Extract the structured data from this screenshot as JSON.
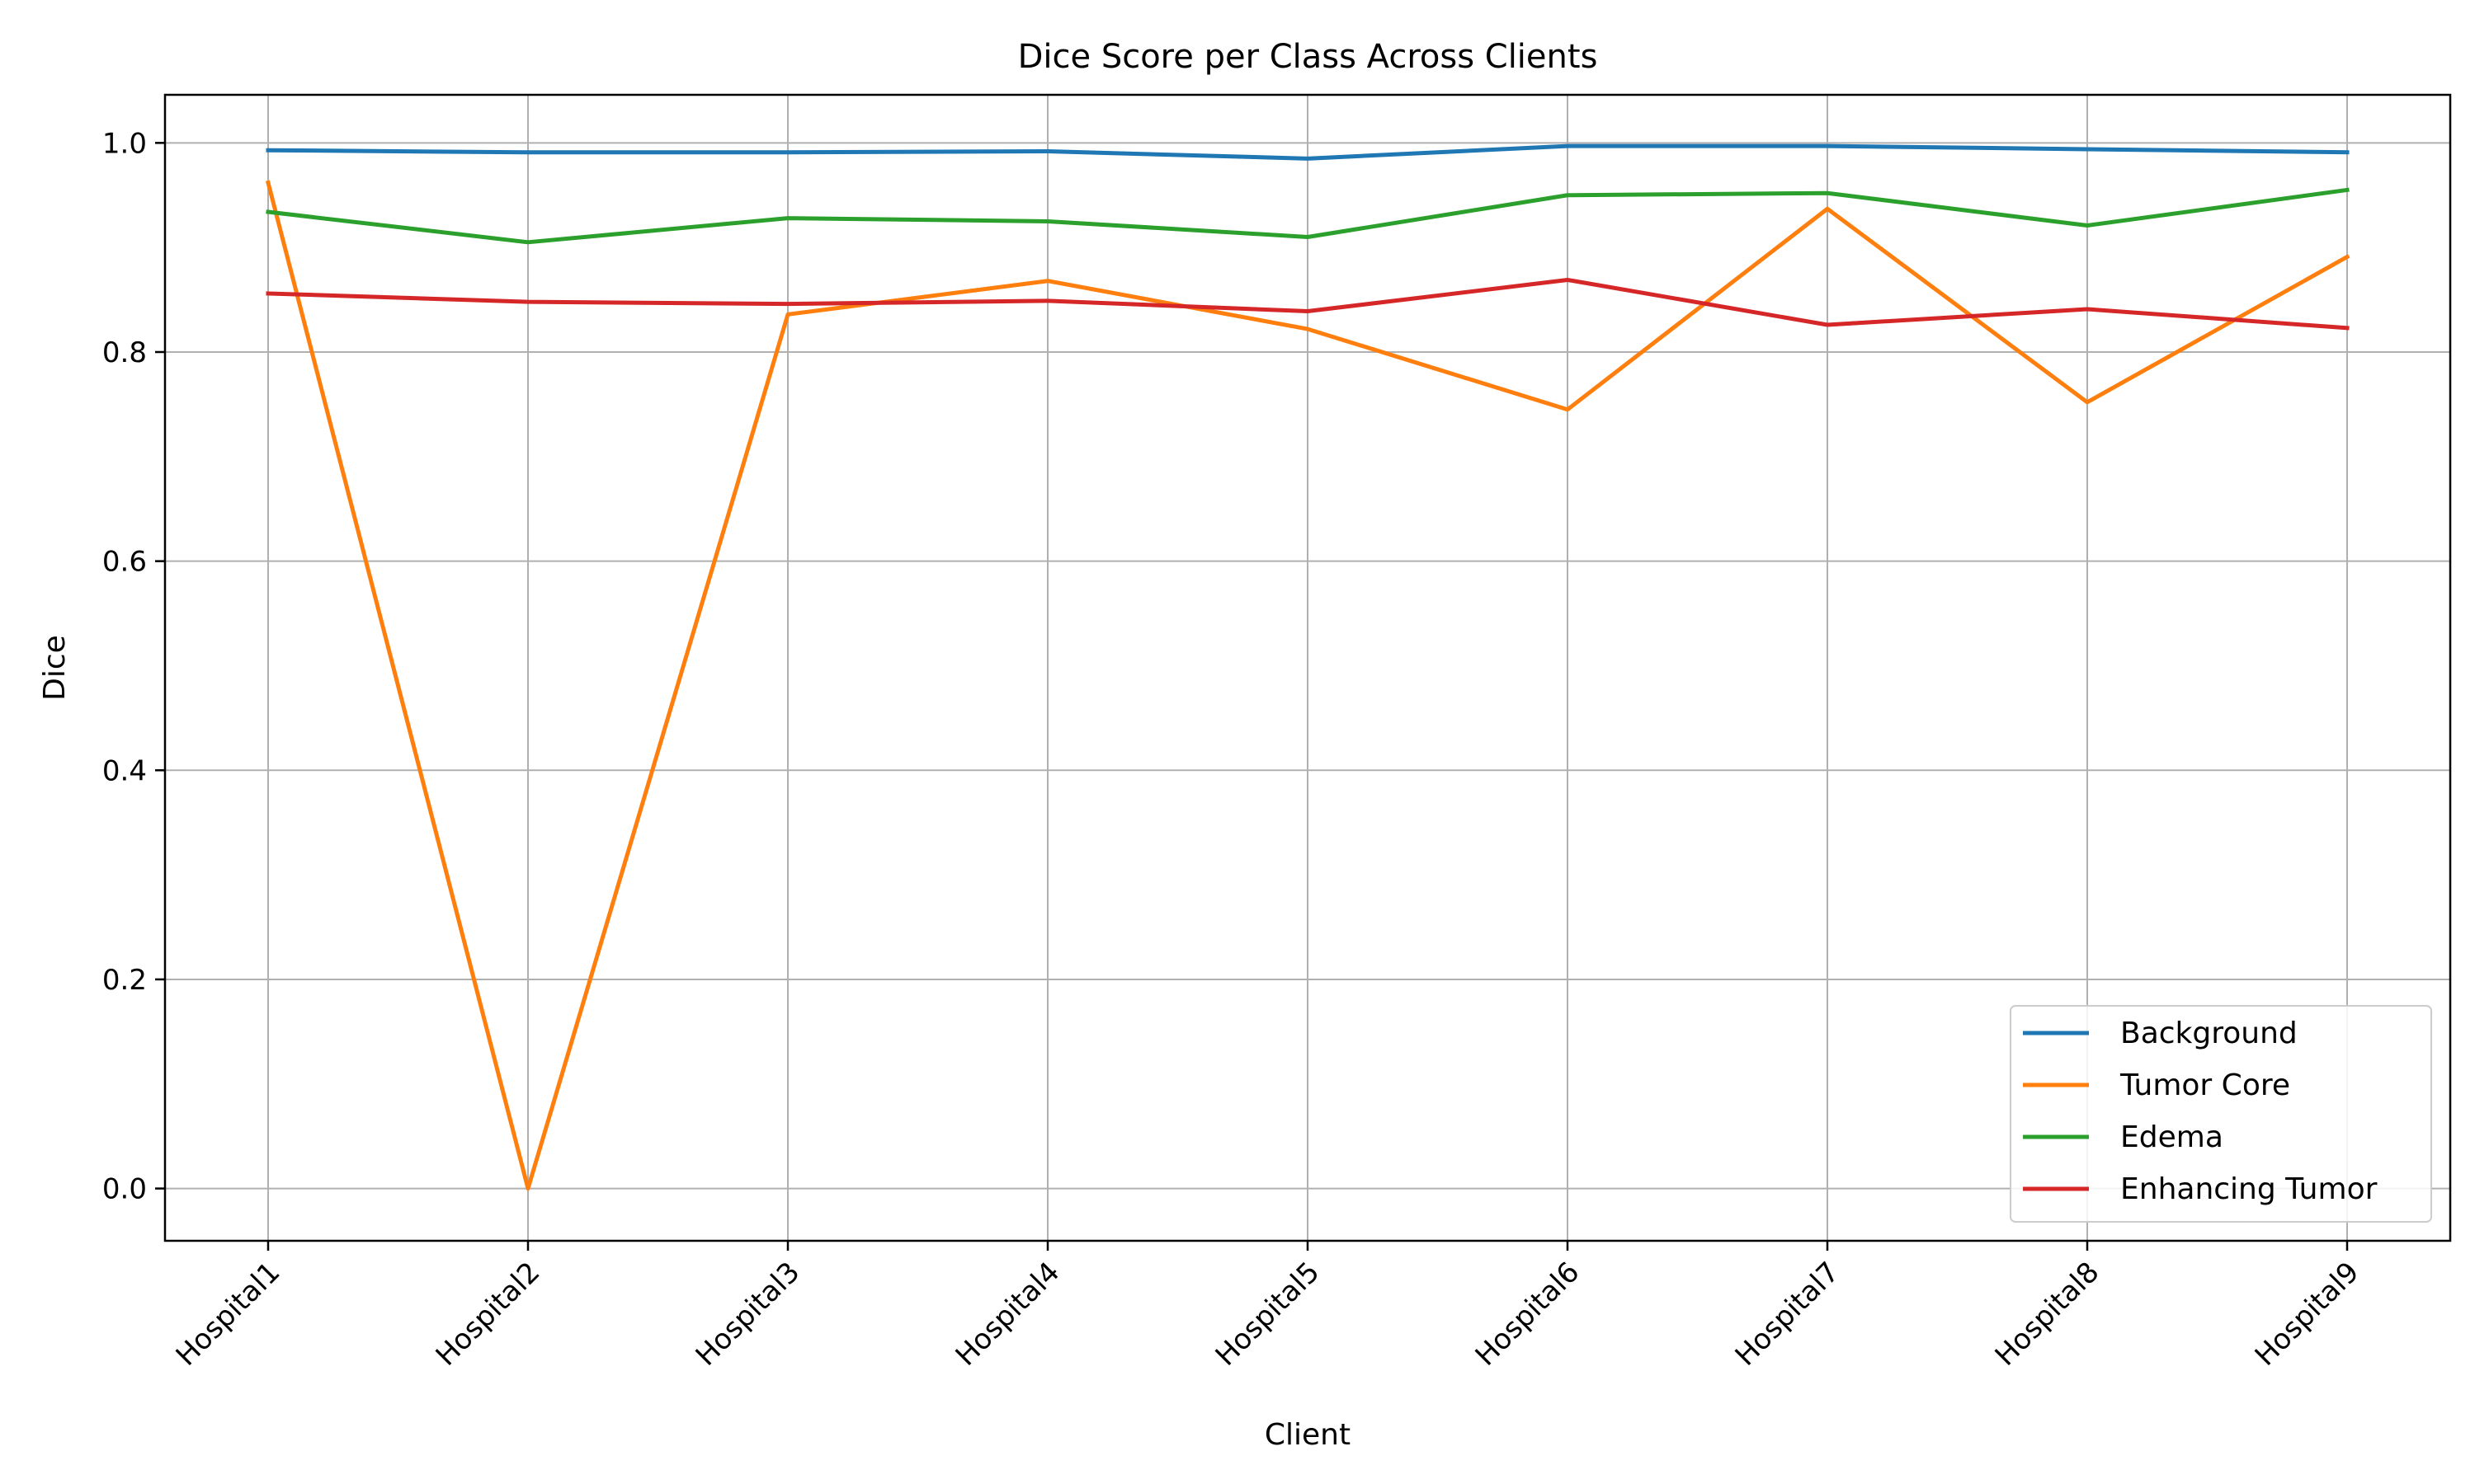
{
  "chart_data": {
    "type": "line",
    "title": "Dice Score per Class Across Clients",
    "xlabel": "Client",
    "ylabel": "Dice",
    "categories": [
      "Hospital1",
      "Hospital2",
      "Hospital3",
      "Hospital4",
      "Hospital5",
      "Hospital6",
      "Hospital7",
      "Hospital8",
      "Hospital9"
    ],
    "yticks": [
      "0.0",
      "0.2",
      "0.4",
      "0.6",
      "0.8",
      "1.0"
    ],
    "ylim": [
      -0.05,
      1.046
    ],
    "grid": true,
    "legend_position": "lower-right",
    "series": [
      {
        "name": "Background",
        "color": "#1f77b4",
        "values": [
          0.993,
          0.991,
          0.991,
          0.992,
          0.985,
          0.997,
          0.997,
          0.994,
          0.991
        ]
      },
      {
        "name": "Tumor Core",
        "color": "#ff7f0e",
        "values": [
          0.962,
          0.0,
          0.836,
          0.868,
          0.822,
          0.745,
          0.937,
          0.752,
          0.891
        ]
      },
      {
        "name": "Edema",
        "color": "#2ca02c",
        "values": [
          0.934,
          0.905,
          0.928,
          0.925,
          0.91,
          0.95,
          0.952,
          0.921,
          0.955
        ]
      },
      {
        "name": "Enhancing Tumor",
        "color": "#d62728",
        "values": [
          0.856,
          0.848,
          0.846,
          0.849,
          0.839,
          0.869,
          0.826,
          0.841,
          0.823
        ]
      }
    ]
  }
}
